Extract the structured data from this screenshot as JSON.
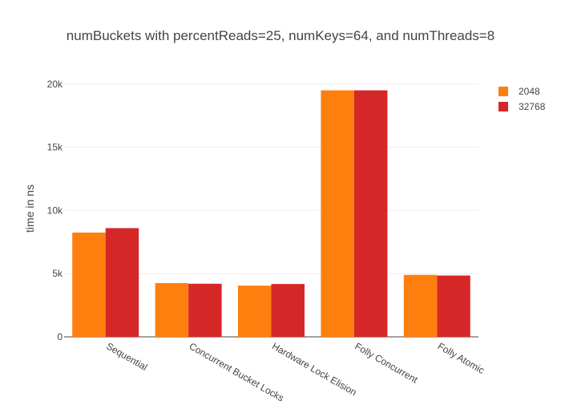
{
  "chart_data": {
    "type": "bar",
    "title": "numBuckets with percentReads=25, numKeys=64, and numThreads=8",
    "xlabel": "",
    "ylabel": "time in ns",
    "categories": [
      "Sequential",
      "Concurrent Bucket Locks",
      "Hardware Lock Elision",
      "Folly Concurrent",
      "Folly Atomic"
    ],
    "series": [
      {
        "name": "2048",
        "color": "#ff7f0e",
        "values": [
          8250,
          4250,
          4050,
          19500,
          4900
        ]
      },
      {
        "name": "32768",
        "color": "#d62728",
        "values": [
          8600,
          4200,
          4180,
          19500,
          4850
        ]
      }
    ],
    "ylim": [
      0,
      21000
    ],
    "yticks": [
      0,
      5000,
      10000,
      15000,
      20000
    ],
    "ytick_labels": [
      "0",
      "5k",
      "10k",
      "15k",
      "20k"
    ],
    "grid": true,
    "legend_position": "top-right"
  }
}
